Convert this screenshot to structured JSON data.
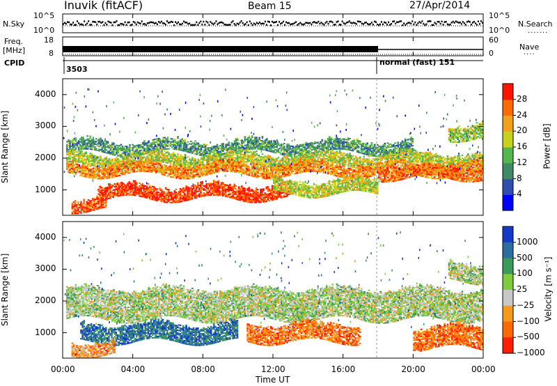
{
  "header": {
    "station": "Inuvik (fitACF)",
    "beam": "Beam 15",
    "date": "27/Apr/2014"
  },
  "top_panels": {
    "nsky_label": "N.Sky",
    "nsky_ticks": [
      "10^5",
      "10^0"
    ],
    "nsearch_label": "N.Search",
    "nsearch_ticks": [
      "10^5",
      "10^0"
    ],
    "freq_label": "Freq.",
    "freq_unit": "[MHz]",
    "freq_ticks": [
      "18",
      "8"
    ],
    "nave_label": "Nave",
    "nave_ticks": [
      "60",
      "0"
    ],
    "cpid_label": "CPID",
    "cpid_value_1": "3503",
    "cpid_value_2": "normal (fast) 151"
  },
  "chart_data": [
    {
      "type": "heatmap",
      "name": "power",
      "ylabel": "Slant Range [km]",
      "ylim": [
        200,
        4500
      ],
      "yticks": [
        "1000",
        "2000",
        "3000",
        "4000"
      ],
      "colorbar_label": "Power [dB]",
      "colorbar_ticks": [
        "4",
        "8",
        "12",
        "16",
        "20",
        "24",
        "28"
      ],
      "colors": [
        "#0000ff",
        "#2f4fb0",
        "#3f8a64",
        "#54b84c",
        "#c9d21a",
        "#f2a21a",
        "#ff6a00",
        "#ff1400"
      ],
      "bands": [
        {
          "t0": 0.2,
          "t1": 20.0,
          "r0": 2150,
          "r1": 2450,
          "level": 0.35
        },
        {
          "t0": 0.2,
          "t1": 24.0,
          "r0": 1750,
          "r1": 2050,
          "level": 0.55
        },
        {
          "t0": 0.2,
          "t1": 24.0,
          "r0": 1450,
          "r1": 1750,
          "level": 0.75
        },
        {
          "t0": 2.0,
          "t1": 13.0,
          "r0": 700,
          "r1": 1050,
          "level": 0.9
        },
        {
          "t0": 0.5,
          "t1": 2.5,
          "r0": 350,
          "r1": 650,
          "level": 0.85
        },
        {
          "t0": 12.0,
          "t1": 18.0,
          "r0": 850,
          "r1": 1200,
          "level": 0.55
        },
        {
          "t0": 18.0,
          "t1": 24.0,
          "r0": 1350,
          "r1": 1650,
          "level": 0.8
        },
        {
          "t0": 22.0,
          "t1": 24.0,
          "r0": 2600,
          "r1": 3000,
          "level": 0.5
        }
      ]
    },
    {
      "type": "heatmap",
      "name": "velocity",
      "ylabel": "Slant Range [km]",
      "ylim": [
        200,
        4500
      ],
      "yticks": [
        "1000",
        "2000",
        "3000",
        "4000"
      ],
      "colorbar_label": "Velocity [m s⁻¹]",
      "colorbar_ticks": [
        "1000",
        "500",
        "100",
        "25",
        "−25",
        "−100",
        "−500",
        "−1000"
      ],
      "colors": [
        "#1438c8",
        "#2a6fa0",
        "#3a9a5a",
        "#7ccc3c",
        "#c8c8c8",
        "#f59a1a",
        "#ff6a00",
        "#ff1e00"
      ],
      "bands": [
        {
          "t0": 0.2,
          "t1": 24.0,
          "r0": 1400,
          "r1": 2300,
          "level": 0.5
        },
        {
          "t0": 1.0,
          "t1": 10.0,
          "r0": 700,
          "r1": 1200,
          "level": 0.2
        },
        {
          "t0": 10.5,
          "t1": 17.0,
          "r0": 700,
          "r1": 1200,
          "level": 0.78
        },
        {
          "t0": 0.5,
          "t1": 3.0,
          "r0": 300,
          "r1": 650,
          "level": 0.72
        },
        {
          "t0": 20.0,
          "t1": 24.0,
          "r0": 500,
          "r1": 1100,
          "level": 0.8
        },
        {
          "t0": 22.0,
          "t1": 24.0,
          "r0": 2600,
          "r1": 3100,
          "level": 0.5
        }
      ]
    }
  ],
  "x_axis": {
    "ticks": [
      "00:00",
      "04:00",
      "08:00",
      "12:00",
      "16:00",
      "20:00",
      "00:00"
    ],
    "label": "Time UT",
    "range_hours": [
      0,
      24
    ],
    "mode_change_hour": 18.0
  }
}
